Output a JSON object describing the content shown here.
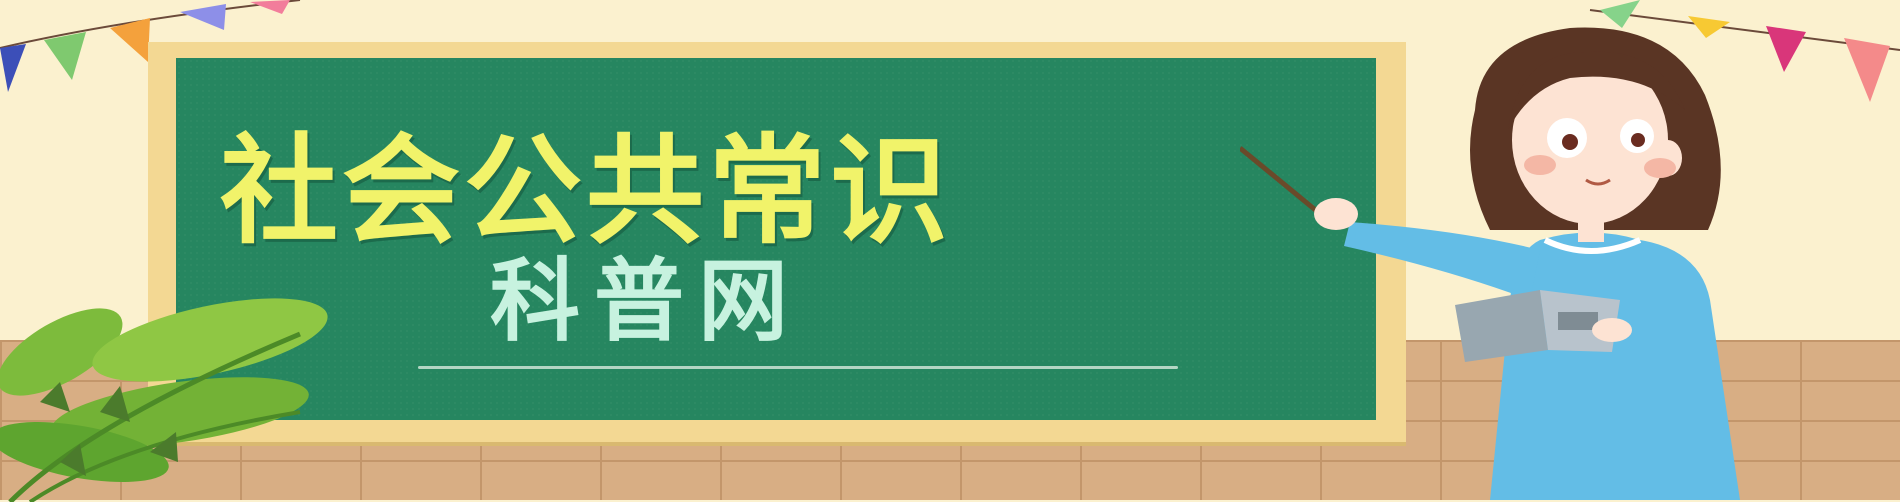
{
  "banner": {
    "title": "社会公共常识",
    "subtitle": "科普网"
  },
  "colors": {
    "wall": "#fbf1cf",
    "chalkboard": "#268660",
    "frame": "#f3d893",
    "title_text": "#f1f36a",
    "subtitle_text": "#c7f2df",
    "brick": "#d8ae84",
    "teacher_dress": "#63bde6",
    "teacher_hair": "#5a3524"
  },
  "decorations": {
    "left_bunting": "pennant-flags-icon",
    "right_bunting": "pennant-flags-icon",
    "plant": "potted-leaves-icon",
    "teacher": "teacher-holding-book-illustration"
  }
}
